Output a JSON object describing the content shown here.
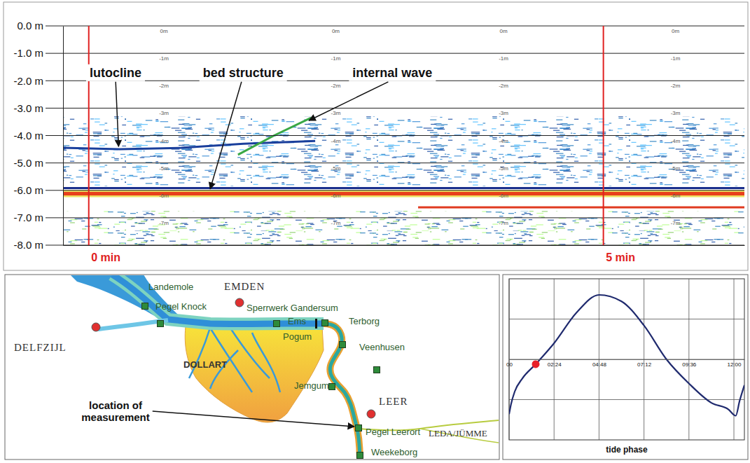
{
  "chart_data": [
    {
      "type": "echogram",
      "xlim": [
        -0.25,
        6.37
      ],
      "xticks": [
        {
          "value": 0,
          "label": "0 min"
        },
        {
          "value": 5,
          "label": "5 min"
        }
      ],
      "ylim": [
        -8,
        0
      ],
      "yticks": [
        {
          "value": 0,
          "label": "0.0 m"
        },
        {
          "value": -1,
          "label": "-1.0 m"
        },
        {
          "value": -2,
          "label": "-2.0 m"
        },
        {
          "value": -3,
          "label": "-3.0 m"
        },
        {
          "value": -4,
          "label": "-4.0 m"
        },
        {
          "value": -5,
          "label": "-5.0 m"
        },
        {
          "value": -6,
          "label": "-6.0 m"
        },
        {
          "value": -7,
          "label": "-7.0 m"
        },
        {
          "value": -8,
          "label": "-8.0 m"
        }
      ],
      "grid": true,
      "depth_marks": {
        "x": [
          0.73,
          2.4,
          4.03,
          5.7
        ],
        "values": [
          0,
          -1,
          -2,
          -3,
          -4,
          -5,
          -6,
          -7
        ],
        "labels": [
          "0m",
          "-1m",
          "-2m",
          "-3m",
          "-4m",
          "-5m",
          "-6m",
          "-7m"
        ]
      },
      "bands": [
        {
          "from": -3.3,
          "to": -5.85,
          "color": "#3f8fd6"
        },
        {
          "from": -6.75,
          "to": -8.0,
          "color": "#8ccf6a"
        }
      ],
      "series": [
        {
          "color": "#1a3f9c",
          "line_style": "solid",
          "x": [
            -0.25,
            0.3,
            0.9,
            1.5,
            2.2
          ],
          "values": [
            -4.45,
            -4.5,
            -4.45,
            -4.3,
            -4.2
          ]
        },
        {
          "color": "#3aa845",
          "line_style": "solid",
          "x": [
            1.45,
            1.8,
            2.16
          ],
          "values": [
            -4.7,
            -4.0,
            -3.35
          ]
        },
        {
          "color": "#1a2f8c",
          "line_style": "solid",
          "x": [
            -0.25,
            6.37
          ],
          "values": [
            -5.92,
            -5.92
          ]
        },
        {
          "color": "#e8401c",
          "line_style": "bold",
          "x": [
            -0.25,
            6.37
          ],
          "values": [
            -6.12,
            -6.12
          ]
        },
        {
          "color": "#e03a20",
          "line_style": "solid",
          "x": [
            3.2,
            6.37
          ],
          "values": [
            -6.62,
            -6.62
          ]
        }
      ],
      "annotations": [
        {
          "text": "lutocline",
          "x": 0.26,
          "y": -1.74,
          "target_x": 0.29,
          "target_y": -4.4
        },
        {
          "text": "bed structure",
          "x": 1.5,
          "y": -1.74,
          "target_x": 1.18,
          "target_y": -5.95
        },
        {
          "text": "internal wave",
          "x": 2.95,
          "y": -1.74,
          "target_x": 2.14,
          "target_y": -3.45
        }
      ]
    },
    {
      "type": "line",
      "title": "tide phase",
      "xlim": [
        0,
        12.56
      ],
      "xticks": [
        {
          "value": 0,
          "label": "00"
        },
        {
          "value": 2.4,
          "label": "02:24"
        },
        {
          "value": 4.8,
          "label": "04:48"
        },
        {
          "value": 7.2,
          "label": "07:12"
        },
        {
          "value": 9.6,
          "label": "09:36"
        },
        {
          "value": 12,
          "label": "12:00"
        }
      ],
      "ylim": [
        0,
        1
      ],
      "yticks": [
        0.25,
        0.5,
        0.75
      ],
      "tick_labels": "x",
      "grid": true,
      "series": [
        {
          "type": "line",
          "color": "#1f2a6e",
          "x": [
            0,
            0.1,
            0.3,
            0.7,
            1.42,
            2.4,
            3.6,
            4.8,
            6.0,
            7.2,
            8.4,
            9.6,
            10.8,
            11.7,
            12.1,
            12.3,
            12.56
          ],
          "values": [
            0.16,
            0.22,
            0.3,
            0.38,
            0.47,
            0.6,
            0.79,
            0.9,
            0.86,
            0.71,
            0.5,
            0.35,
            0.23,
            0.19,
            0.15,
            0.24,
            0.34
          ]
        },
        {
          "type": "scatter",
          "color": "#e8202a",
          "marker": "circle",
          "x": [
            1.42
          ],
          "values": [
            0.47
          ]
        }
      ]
    }
  ],
  "map": {
    "places": [
      {
        "label": "Landemole",
        "marker": "square"
      },
      {
        "label": "Pegel Knock",
        "marker": "square"
      },
      {
        "label": "EMDEN",
        "marker": "circle"
      },
      {
        "label": "Sperrwerk Gandersum",
        "marker": "square"
      },
      {
        "label": "Ems",
        "marker": "none"
      },
      {
        "label": "DELFZIJL",
        "marker": "circle"
      },
      {
        "label": "Pogum",
        "marker": "square"
      },
      {
        "label": "Terborg",
        "marker": "square"
      },
      {
        "label": "Veenhusen",
        "marker": "square"
      },
      {
        "label": "DOLLART",
        "marker": "none"
      },
      {
        "label": "Jemgum",
        "marker": "square"
      },
      {
        "label": "LEER",
        "marker": "circle"
      },
      {
        "label": "Pegel Leerort",
        "marker": "square"
      },
      {
        "label": "LEDA/JÜMME",
        "marker": "none"
      },
      {
        "label": "Weekeborg",
        "marker": "square"
      }
    ],
    "annotation": "location of measurement"
  }
}
